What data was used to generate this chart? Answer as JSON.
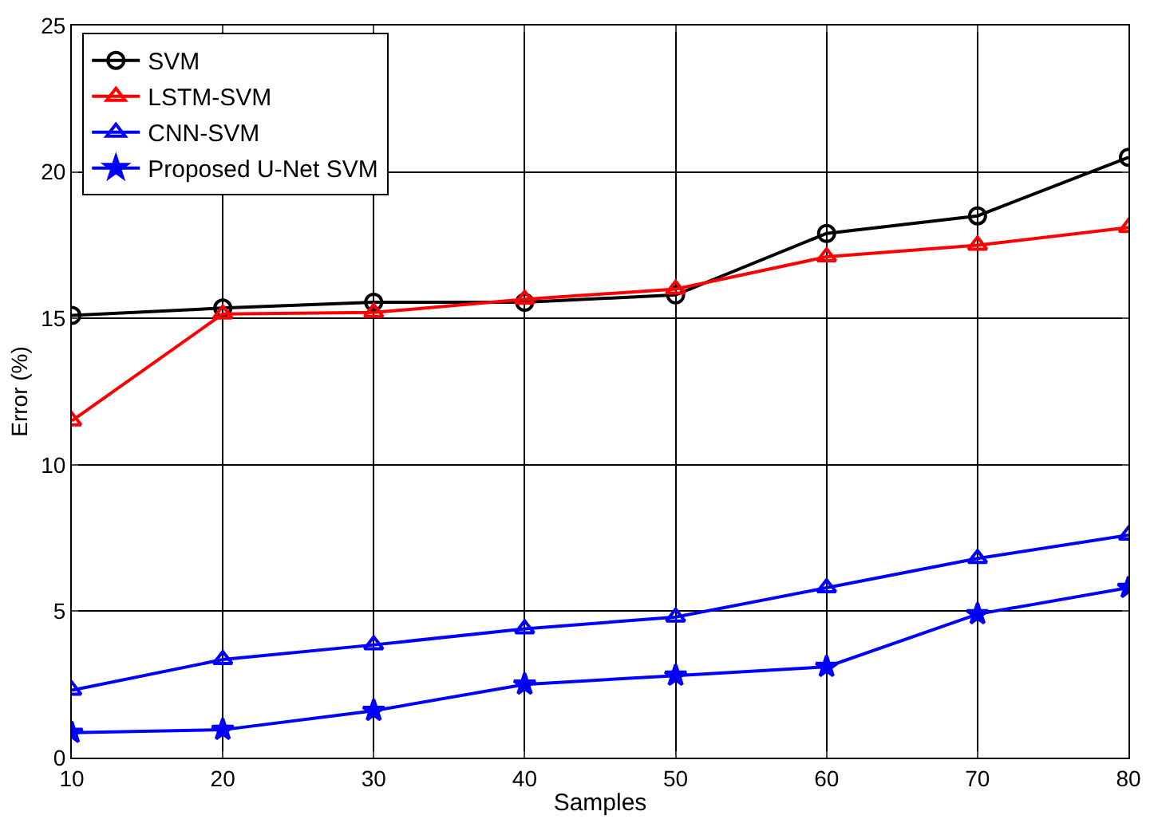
{
  "chart_data": {
    "type": "line",
    "xlabel": "Samples",
    "ylabel": "Error (%)",
    "x": [
      10,
      20,
      30,
      40,
      50,
      60,
      70,
      80
    ],
    "series": [
      {
        "name": "SVM",
        "color": "#000000",
        "marker": "circle",
        "values": [
          15.1,
          15.35,
          15.55,
          15.55,
          15.8,
          17.9,
          18.5,
          20.5
        ]
      },
      {
        "name": "LSTM-SVM",
        "color": "#ff0000",
        "marker": "triangle",
        "values": [
          11.5,
          15.15,
          15.2,
          15.65,
          16.0,
          17.1,
          17.5,
          18.1
        ]
      },
      {
        "name": "CNN-SVM",
        "color": "#0000ff",
        "marker": "triangle",
        "values": [
          2.3,
          3.35,
          3.85,
          4.4,
          4.8,
          5.8,
          6.8,
          7.6
        ]
      },
      {
        "name": "Proposed U-Net SVM",
        "color": "#0000ff",
        "marker": "star",
        "values": [
          0.85,
          0.95,
          1.6,
          2.5,
          2.8,
          3.1,
          4.9,
          5.8
        ]
      }
    ],
    "xlim": [
      10,
      80
    ],
    "xticks": [
      10,
      20,
      30,
      40,
      50,
      60,
      70,
      80
    ],
    "ylim": [
      0,
      25
    ],
    "yticks": [
      0,
      5,
      10,
      15,
      20,
      25
    ],
    "grid": true,
    "legend": "top left",
    "line_style": "solid"
  }
}
